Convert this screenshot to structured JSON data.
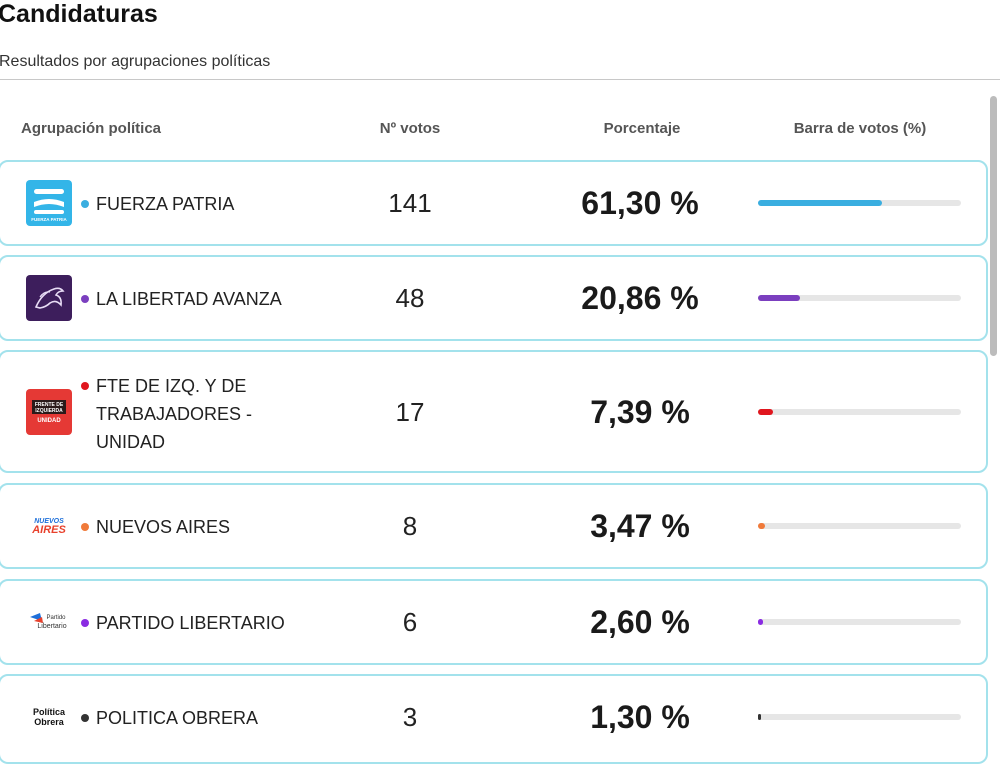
{
  "page": {
    "title": "Candidaturas",
    "subtitle": "Resultados por agrupaciones políticas"
  },
  "headers": {
    "name": "Agrupación política",
    "votes": "Nº votos",
    "percent": "Porcentaje",
    "bar": "Barra de votos (%)"
  },
  "rows": [
    {
      "name": "FUERZA PATRIA",
      "votes": "141",
      "percent": "61,30 %",
      "share": 0.613,
      "color": "#3aaee0",
      "logo": {
        "text": "FUERZA PATRIA",
        "bg": "#33b5e8",
        "icon": "fuerza-patria-logo-icon"
      }
    },
    {
      "name": "LA LIBERTAD AVANZA",
      "votes": "48",
      "percent": "20,86 %",
      "share": 0.2086,
      "color": "#7b3fbf",
      "logo": {
        "text": "",
        "bg": "#3d1e5c",
        "icon": "lion-logo-icon"
      }
    },
    {
      "name": "FTE DE IZQ. Y DE TRABAJADORES - UNIDAD",
      "votes": "17",
      "percent": "7,39 %",
      "share": 0.0739,
      "color": "#e0161e",
      "logo": {
        "text": "FRENTE DE IZQUIERDA UNIDAD",
        "bg": "#e53935",
        "icon": "frente-izquierda-logo-icon"
      }
    },
    {
      "name": "NUEVOS AIRES",
      "votes": "8",
      "percent": "3,47 %",
      "share": 0.0347,
      "color": "#f07a3a",
      "logo": {
        "text": "NUEVOS AIRES",
        "bg": "#ffffff",
        "icon": "nuevos-aires-logo-icon"
      }
    },
    {
      "name": "PARTIDO LIBERTARIO",
      "votes": "6",
      "percent": "2,60 %",
      "share": 0.026,
      "color": "#8a2be2",
      "logo": {
        "text": "Partido Libertario",
        "bg": "#ffffff",
        "icon": "partido-libertario-logo-icon"
      }
    },
    {
      "name": "POLITICA OBRERA",
      "votes": "3",
      "percent": "1,30 %",
      "share": 0.013,
      "color": "#333333",
      "logo": {
        "text": "Política Obrera",
        "bg": "#ffffff",
        "icon": "politica-obrera-logo-icon"
      }
    }
  ]
}
